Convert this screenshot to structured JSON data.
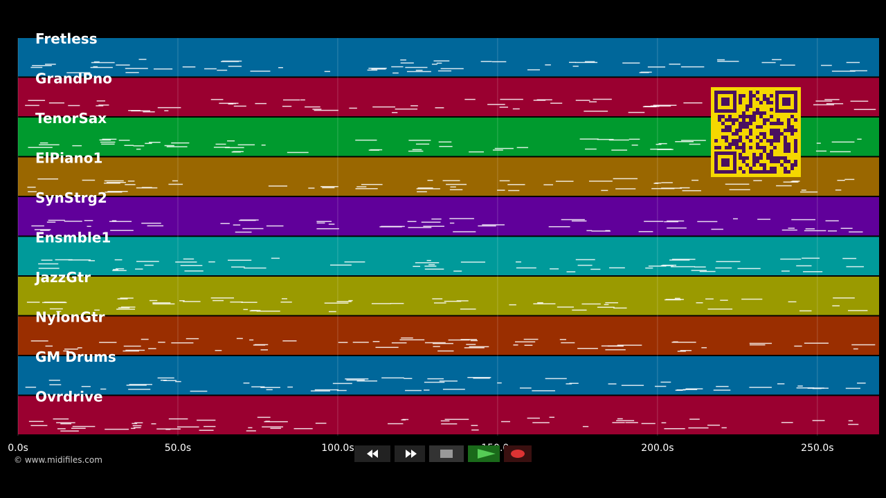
{
  "tracks": [
    {
      "name": "Fretless",
      "color": "#00679a"
    },
    {
      "name": "GrandPno",
      "color": "#9a0030"
    },
    {
      "name": "TenorSax",
      "color": "#009a2e"
    },
    {
      "name": "ElPiano1",
      "color": "#9a6700"
    },
    {
      "name": "SynStrg2",
      "color": "#60009a"
    },
    {
      "name": "Ensmble1",
      "color": "#009a9a"
    },
    {
      "name": "JazzGtr",
      "color": "#9a9a00"
    },
    {
      "name": "NylonGtr",
      "color": "#9a2e00"
    },
    {
      "name": "GM Drums",
      "color": "#00679a"
    },
    {
      "name": "Ovrdrive",
      "color": "#9a0030"
    }
  ],
  "time_axis": {
    "xlim": [
      0,
      269.3
    ],
    "ticks": [
      {
        "value": 0,
        "label": "0.0s"
      },
      {
        "value": 50,
        "label": "50.0s"
      },
      {
        "value": 100,
        "label": "100.0s"
      },
      {
        "value": 150,
        "label": "150.0s"
      },
      {
        "value": 200,
        "label": "200.0s"
      },
      {
        "value": 250,
        "label": "250.0s"
      }
    ]
  },
  "footer": {
    "credit": "© www.midifiles.com"
  }
}
